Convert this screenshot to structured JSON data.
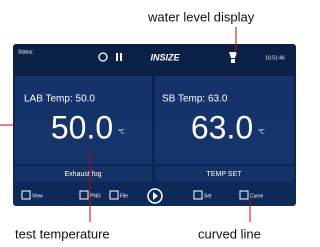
{
  "annotations": {
    "water_level": "water level display",
    "test_temperature": "test temperature",
    "curved_line": "curved line"
  },
  "screen": {
    "status": "Status:",
    "logo": "INSIZE",
    "time": "16:51:46",
    "left_panel": {
      "label": "LAB Temp: 50.0",
      "value": "50.0",
      "unit": "℃",
      "button": "Exhaust fog"
    },
    "right_panel": {
      "label": "SB Temp: 63.0",
      "value": "63.0",
      "unit": "℃",
      "button": "TEMP SET"
    },
    "toolbar": [
      "View",
      "PNG",
      "File",
      "Set",
      "Curve"
    ]
  }
}
